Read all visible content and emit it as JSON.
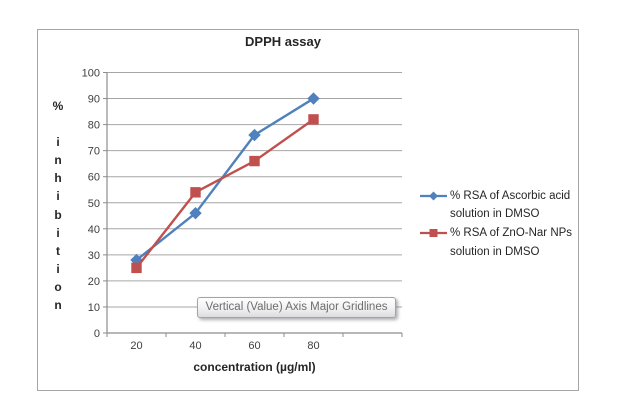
{
  "chart_data": {
    "type": "line",
    "title": "DPPH assay",
    "xlabel": "concentration (µg/ml)",
    "ylabel": "% inhibition",
    "categories": [
      20,
      40,
      60,
      80
    ],
    "ylim": [
      0,
      100
    ],
    "y_ticks": [
      0,
      10,
      20,
      30,
      40,
      50,
      60,
      70,
      80,
      90,
      100
    ],
    "grid": true,
    "legend_position": "right",
    "series": [
      {
        "name": "% RSA of Ascorbic acid solution in DMSO",
        "label_lines": [
          "% RSA of Ascorbic acid",
          "solution in DMSO"
        ],
        "marker": "diamond",
        "color": "#4F81BD",
        "values": [
          28,
          46,
          76,
          90
        ]
      },
      {
        "name": "% RSA of ZnO-Nar NPs solution in DMSO",
        "label_lines": [
          "% RSA of ZnO-Nar NPs",
          "solution in DMSO"
        ],
        "marker": "square",
        "color": "#C0504D",
        "values": [
          25,
          54,
          66,
          82
        ]
      }
    ]
  },
  "overlay": {
    "tooltip_text": "Vertical (Value) Axis Major Gridlines"
  },
  "palette": {
    "gridline": "#A6A6A6",
    "axis": "#8C8C8C",
    "tick_text": "#3F3F3F",
    "title_text": "#262626",
    "chart_border": "#A6A6A6",
    "series_blue": "#4F81BD",
    "series_red": "#C0504D",
    "tooltip_text": "#6E6E6E",
    "tooltip_border": "#A3A3A3"
  }
}
